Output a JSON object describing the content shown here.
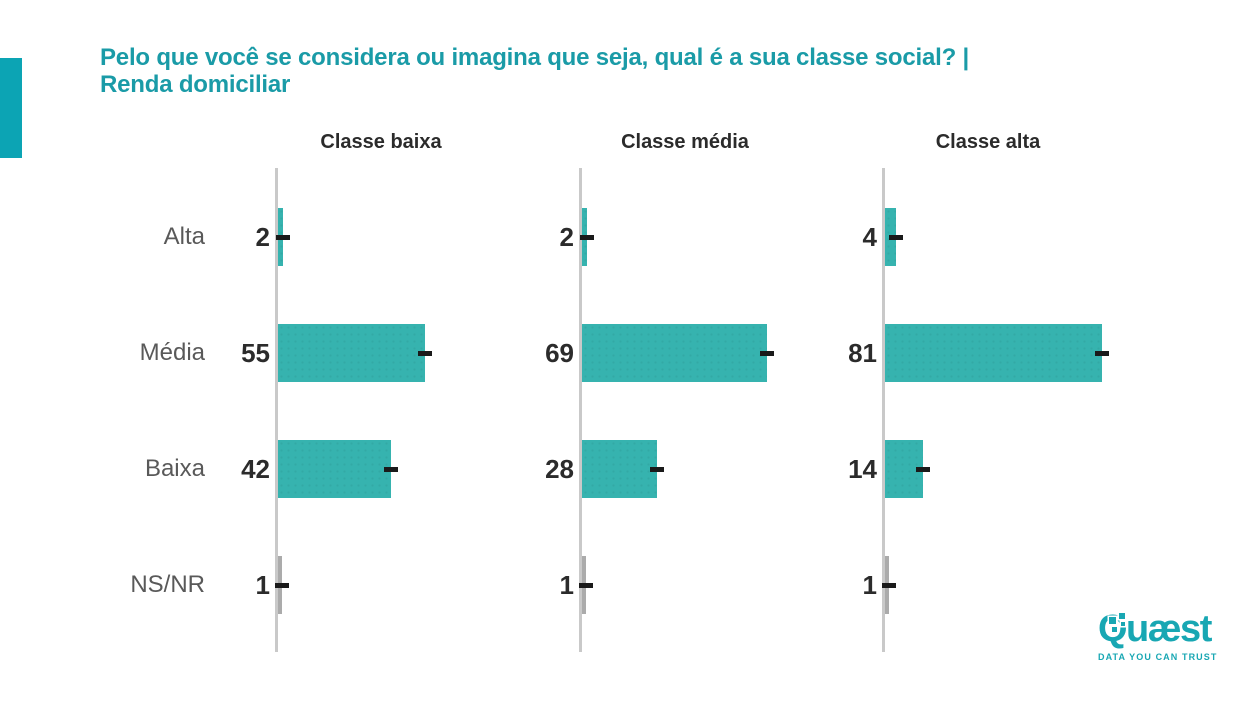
{
  "title": {
    "line1": "Pelo que você se considera ou imagina que seja, qual é a sua classe social? |",
    "line2": "Renda domiciliar"
  },
  "logo": {
    "wordmark": "Quæst",
    "tagline": "DATA YOU CAN TRUST"
  },
  "colors": {
    "accent": "#0CA4B4",
    "title": "#1A9BA7",
    "bar": "#36B3AF",
    "nsnr_bar": "#ABABAB",
    "axis": "#C9C9C9",
    "row_label": "#595959",
    "value_label": "#2B2B2B",
    "end_marker": "#1A1A1A",
    "logo": "#18A7B3"
  },
  "chart_data": {
    "type": "bar",
    "orientation": "horizontal",
    "title": "Pelo que você se considera ou imagina que seja, qual é a sua classe social? | Renda domiciliar",
    "categories": [
      "Alta",
      "Média",
      "Baixa",
      "NS/NR"
    ],
    "series": [
      {
        "name": "Classe baixa",
        "values": [
          2,
          55,
          42,
          1
        ]
      },
      {
        "name": "Classe média",
        "values": [
          2,
          69,
          28,
          1
        ]
      },
      {
        "name": "Classe alta",
        "values": [
          4,
          81,
          14,
          1
        ]
      }
    ],
    "xlim": [
      0,
      100
    ],
    "grid": false,
    "legend_position": "panel-headers",
    "notes": "Values are percentages; NS/NR bars drawn gray; black dash marker at each bar end"
  }
}
